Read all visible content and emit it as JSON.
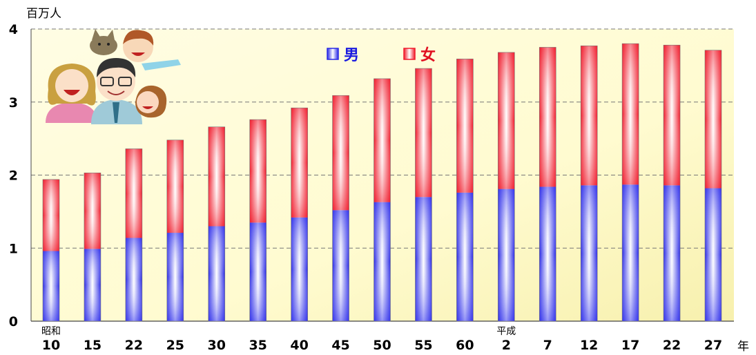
{
  "chart_data": {
    "type": "bar",
    "stacked": true,
    "y_unit": "百万人",
    "x_unit": "年",
    "ylim": [
      0,
      4
    ],
    "y_ticks": [
      "0",
      "1",
      "2",
      "3",
      "4"
    ],
    "grid": true,
    "era_labels": [
      {
        "label": "昭和",
        "at_index": 0
      },
      {
        "label": "平成",
        "at_index": 11
      }
    ],
    "categories": [
      "10",
      "15",
      "22",
      "25",
      "30",
      "35",
      "40",
      "45",
      "50",
      "55",
      "60",
      "2",
      "7",
      "12",
      "17",
      "22",
      "27"
    ],
    "series": [
      {
        "name": "男",
        "color": "#3333ee",
        "values": [
          0.96,
          0.99,
          1.14,
          1.21,
          1.3,
          1.35,
          1.42,
          1.52,
          1.63,
          1.7,
          1.76,
          1.81,
          1.84,
          1.86,
          1.87,
          1.86,
          1.82
        ]
      },
      {
        "name": "女",
        "color": "#ee2233",
        "values": [
          0.98,
          1.04,
          1.22,
          1.27,
          1.36,
          1.41,
          1.5,
          1.57,
          1.69,
          1.76,
          1.83,
          1.87,
          1.91,
          1.91,
          1.93,
          1.92,
          1.89
        ]
      }
    ],
    "legend": {
      "position": "top-center",
      "male_label": "男",
      "female_label": "女"
    }
  },
  "decor": {
    "illustration": "family-illustration-with-cat"
  }
}
